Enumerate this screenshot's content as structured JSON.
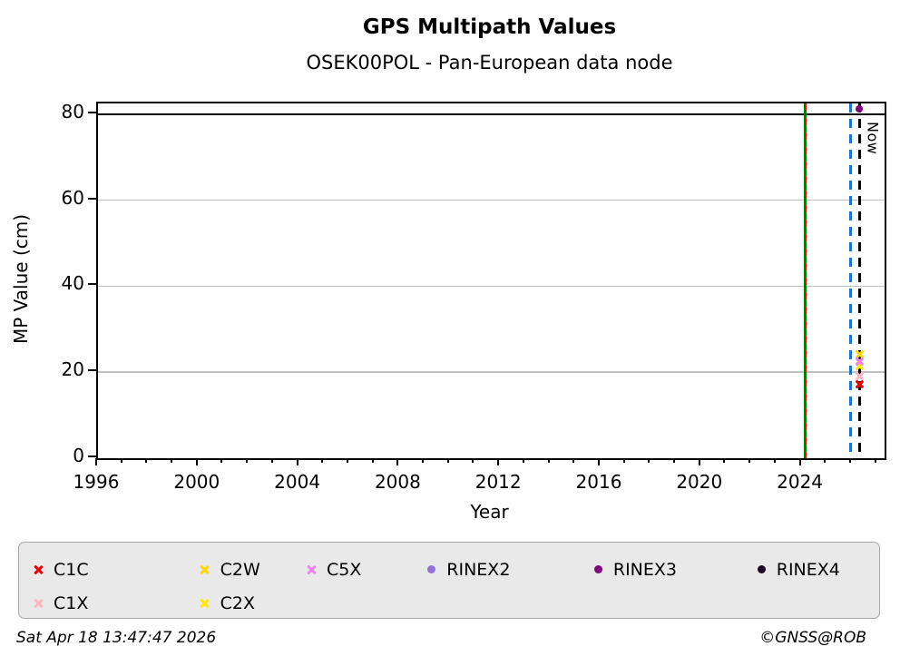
{
  "header": {
    "title": "GPS Multipath Values",
    "subtitle": "OSEK00POL - Pan-European data node"
  },
  "chart_data": {
    "type": "scatter",
    "title": "GPS Multipath Values",
    "subtitle": "OSEK00POL - Pan-European data node",
    "xlabel": "Year",
    "ylabel": "MP Value (cm)",
    "xlim": [
      1996,
      2027.3
    ],
    "ylim": [
      0,
      82.5
    ],
    "xticks_major": [
      1996,
      2000,
      2004,
      2008,
      2012,
      2016,
      2020,
      2024
    ],
    "xtick_minor_step_years": 1,
    "yticks": [
      0,
      20,
      40,
      60,
      80
    ],
    "gridlines_y": [
      20,
      40,
      60
    ],
    "grid": "horizontal-only",
    "hline": {
      "y": 80,
      "color": "#000000"
    },
    "vlines": [
      {
        "name": "event-line-green-red",
        "x": 2024.15,
        "style": "solid",
        "color": "#007F00",
        "overlay_dash_color": "#FF0000"
      },
      {
        "name": "event-line-blue",
        "x": 2025.95,
        "style": "dashed",
        "color": "#1874CD"
      },
      {
        "name": "now-line",
        "x": 2026.3,
        "style": "dashed",
        "color": "#000000",
        "label": "Now"
      }
    ],
    "series": [
      {
        "name": "C1C",
        "marker": "x",
        "color": "#E60000",
        "points": [
          {
            "x": 2026.3,
            "y": 17.3
          }
        ]
      },
      {
        "name": "C1X",
        "marker": "x",
        "color": "#FFB6C1",
        "points": [
          {
            "x": 2026.3,
            "y": 19.0
          }
        ]
      },
      {
        "name": "C2W",
        "marker": "x",
        "color": "#FFD700",
        "points": [
          {
            "x": 2026.3,
            "y": 24.2
          }
        ]
      },
      {
        "name": "C2X",
        "marker": "x",
        "color": "#FFEB00",
        "points": [
          {
            "x": 2026.3,
            "y": 21.5
          }
        ]
      },
      {
        "name": "C5X",
        "marker": "x",
        "color": "#EE82EE",
        "points": [
          {
            "x": 2026.3,
            "y": 22.5
          }
        ]
      },
      {
        "name": "RINEX2",
        "marker": "circle",
        "color": "#9370DB",
        "points": []
      },
      {
        "name": "RINEX3",
        "marker": "circle",
        "color": "#800080",
        "points": [
          {
            "x": 2026.3,
            "y": 81.3
          }
        ]
      },
      {
        "name": "RINEX4",
        "marker": "circle",
        "color": "#1C0A28",
        "points": []
      }
    ],
    "legend": {
      "position": "bottom",
      "rows": [
        [
          "C1C",
          "C2W",
          "C5X",
          "RINEX2",
          "RINEX3",
          "RINEX4"
        ],
        [
          "C1X",
          "C2X"
        ]
      ]
    }
  },
  "footer": {
    "timestamp": "Sat Apr 18 13:47:47 2026",
    "credit": "©GNSS@ROB"
  }
}
